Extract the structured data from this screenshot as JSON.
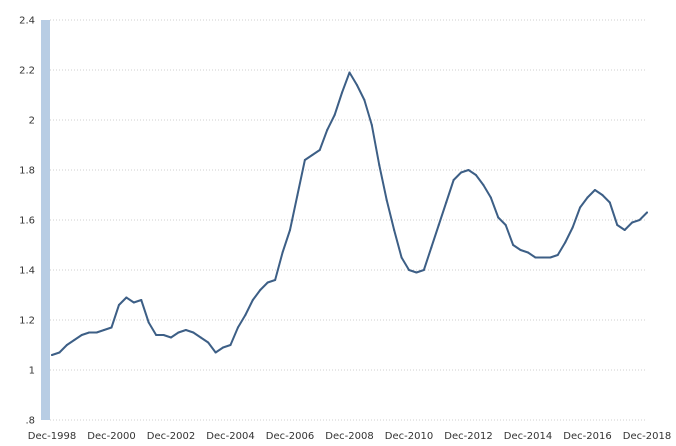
{
  "chart_data": {
    "type": "line",
    "title": "",
    "xlabel": "",
    "ylabel": "",
    "ylim": [
      0.8,
      2.4
    ],
    "y_ticks": [
      {
        "value": 0.8,
        "label": ".8"
      },
      {
        "value": 1.0,
        "label": "1"
      },
      {
        "value": 1.2,
        "label": "1.2"
      },
      {
        "value": 1.4,
        "label": "1.4"
      },
      {
        "value": 1.6,
        "label": "1.6"
      },
      {
        "value": 1.8,
        "label": "1.8"
      },
      {
        "value": 2.0,
        "label": "2"
      },
      {
        "value": 2.2,
        "label": "2.2"
      },
      {
        "value": 2.4,
        "label": "2.4"
      }
    ],
    "x_ticks": [
      "Dec-1998",
      "Dec-2000",
      "Dec-2002",
      "Dec-2004",
      "Dec-2006",
      "Dec-2008",
      "Dec-2010",
      "Dec-2012",
      "Dec-2014",
      "Dec-2016",
      "Dec-2018"
    ],
    "grid": true,
    "legend": "none",
    "colors": {
      "line": "#3d5f86",
      "axis_band": "#b8cde4",
      "grid": "#cfcfcf"
    },
    "series": [
      {
        "x": [
          "Dec-1998",
          "Mar-1999",
          "Jun-1999",
          "Sep-1999",
          "Dec-1999",
          "Mar-2000",
          "Jun-2000",
          "Sep-2000",
          "Dec-2000",
          "Mar-2001",
          "Jun-2001",
          "Sep-2001",
          "Dec-2001",
          "Mar-2002",
          "Jun-2002",
          "Sep-2002",
          "Dec-2002",
          "Mar-2003",
          "Jun-2003",
          "Sep-2003",
          "Dec-2003",
          "Mar-2004",
          "Jun-2004",
          "Sep-2004",
          "Dec-2004",
          "Mar-2005",
          "Jun-2005",
          "Sep-2005",
          "Dec-2005",
          "Mar-2006",
          "Jun-2006",
          "Sep-2006",
          "Dec-2006",
          "Mar-2007",
          "Jun-2007",
          "Sep-2007",
          "Dec-2007",
          "Mar-2008",
          "Jun-2008",
          "Sep-2008",
          "Dec-2008",
          "Mar-2009",
          "Jun-2009",
          "Sep-2009",
          "Dec-2009",
          "Mar-2010",
          "Jun-2010",
          "Sep-2010",
          "Dec-2010",
          "Mar-2011",
          "Jun-2011",
          "Sep-2011",
          "Dec-2011",
          "Mar-2012",
          "Jun-2012",
          "Sep-2012",
          "Dec-2012",
          "Mar-2013",
          "Jun-2013",
          "Sep-2013",
          "Dec-2013",
          "Mar-2014",
          "Jun-2014",
          "Sep-2014",
          "Dec-2014",
          "Mar-2015",
          "Jun-2015",
          "Sep-2015",
          "Dec-2015",
          "Mar-2016",
          "Jun-2016",
          "Sep-2016",
          "Dec-2016",
          "Mar-2017",
          "Jun-2017",
          "Sep-2017",
          "Dec-2017",
          "Mar-2018",
          "Jun-2018",
          "Sep-2018",
          "Dec-2018"
        ],
        "values": [
          1.06,
          1.07,
          1.1,
          1.12,
          1.14,
          1.15,
          1.15,
          1.16,
          1.17,
          1.26,
          1.29,
          1.27,
          1.28,
          1.19,
          1.14,
          1.14,
          1.13,
          1.15,
          1.16,
          1.15,
          1.13,
          1.11,
          1.07,
          1.09,
          1.1,
          1.17,
          1.22,
          1.28,
          1.32,
          1.35,
          1.36,
          1.47,
          1.56,
          1.7,
          1.84,
          1.86,
          1.88,
          1.96,
          2.02,
          2.11,
          2.19,
          2.14,
          2.08,
          1.98,
          1.82,
          1.68,
          1.56,
          1.45,
          1.4,
          1.39,
          1.4,
          1.49,
          1.58,
          1.67,
          1.76,
          1.79,
          1.8,
          1.78,
          1.74,
          1.69,
          1.61,
          1.58,
          1.5,
          1.48,
          1.47,
          1.45,
          1.45,
          1.45,
          1.46,
          1.51,
          1.57,
          1.65,
          1.69,
          1.72,
          1.7,
          1.67,
          1.58,
          1.56,
          1.59,
          1.6,
          1.63
        ]
      }
    ]
  }
}
